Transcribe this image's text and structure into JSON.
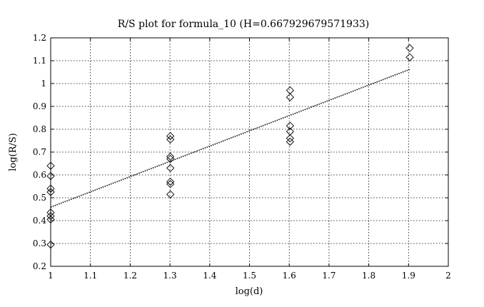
{
  "chart_data": {
    "type": "scatter",
    "title": "R/S plot for formula_10 (H=0.667929679571933)",
    "xlabel": "log(d)",
    "ylabel": "log(R/S)",
    "xlim": [
      1,
      2
    ],
    "ylim": [
      0.2,
      1.2
    ],
    "xticks": [
      "1",
      "1.1",
      "1.2",
      "1.3",
      "1.4",
      "1.5",
      "1.6",
      "1.7",
      "1.8",
      "1.9",
      "2"
    ],
    "yticks": [
      "0.2",
      "0.3",
      "0.4",
      "0.5",
      "0.6",
      "0.7",
      "0.8",
      "0.9",
      "1",
      "1.1",
      "1.2"
    ],
    "grid": true,
    "series": [
      {
        "marker": "diamond",
        "points": [
          {
            "x": 1.0,
            "y": 0.64
          },
          {
            "x": 1.0,
            "y": 0.595
          },
          {
            "x": 1.0,
            "y": 0.54
          },
          {
            "x": 1.0,
            "y": 0.525
          },
          {
            "x": 1.0,
            "y": 0.435
          },
          {
            "x": 1.0,
            "y": 0.42
          },
          {
            "x": 1.0,
            "y": 0.405
          },
          {
            "x": 1.0,
            "y": 0.295
          },
          {
            "x": 1.301,
            "y": 0.77
          },
          {
            "x": 1.301,
            "y": 0.755
          },
          {
            "x": 1.301,
            "y": 0.68
          },
          {
            "x": 1.301,
            "y": 0.67
          },
          {
            "x": 1.301,
            "y": 0.63
          },
          {
            "x": 1.301,
            "y": 0.57
          },
          {
            "x": 1.301,
            "y": 0.56
          },
          {
            "x": 1.301,
            "y": 0.515
          },
          {
            "x": 1.602,
            "y": 0.97
          },
          {
            "x": 1.602,
            "y": 0.94
          },
          {
            "x": 1.602,
            "y": 0.815
          },
          {
            "x": 1.602,
            "y": 0.79
          },
          {
            "x": 1.602,
            "y": 0.76
          },
          {
            "x": 1.602,
            "y": 0.745
          },
          {
            "x": 1.903,
            "y": 1.155
          },
          {
            "x": 1.903,
            "y": 1.115
          }
        ]
      },
      {
        "type": "line",
        "style": "dotted",
        "points": [
          {
            "x": 1.0,
            "y": 0.459
          },
          {
            "x": 1.903,
            "y": 1.062
          }
        ]
      }
    ]
  }
}
